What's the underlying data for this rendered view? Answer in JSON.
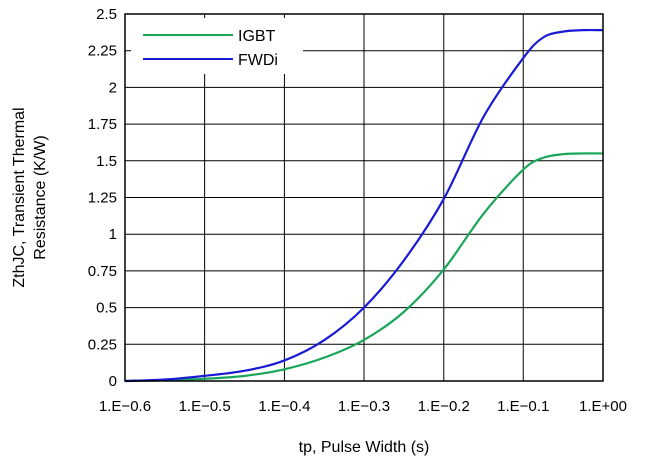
{
  "chart_data": {
    "type": "line",
    "xlabel": "tp, Pulse Width (s)",
    "ylabel_lines": [
      "ZthJC, Transient Thermal",
      "Resistance (K/W)"
    ],
    "x_scale": "log",
    "xlim": [
      0.251,
      1.0
    ],
    "ylim": [
      0,
      2.5
    ],
    "x_ticks": [
      0.251,
      0.316,
      0.398,
      0.501,
      0.631,
      0.794,
      1.0
    ],
    "x_tick_labels": [
      "1.E−0.6",
      "1.E−0.5",
      "1.E−0.4",
      "1.E−0.3",
      "1.E−0.2",
      "1.E−0.1",
      "1.E+00"
    ],
    "y_ticks": [
      0,
      0.25,
      0.5,
      0.75,
      1,
      1.25,
      1.5,
      1.75,
      2,
      2.25,
      2.5
    ],
    "y_tick_labels": [
      "0",
      "0.25",
      "0.5",
      "0.75",
      "1",
      "1.25",
      "1.5",
      "1.75",
      "2",
      "2.25",
      "2.5"
    ],
    "grid": true,
    "legend_position": "top-left",
    "series": [
      {
        "name": "IGBT",
        "color": "#1aa65a",
        "x": [
          0.251,
          0.282,
          0.316,
          0.355,
          0.398,
          0.447,
          0.501,
          0.562,
          0.631,
          0.708,
          0.794,
          0.841,
          0.891,
          0.944,
          1.0
        ],
        "y": [
          0.0,
          0.005,
          0.015,
          0.035,
          0.08,
          0.16,
          0.28,
          0.47,
          0.76,
          1.14,
          1.44,
          1.52,
          1.545,
          1.55,
          1.55
        ]
      },
      {
        "name": "FWDi",
        "color": "#1a1ad6",
        "x": [
          0.251,
          0.282,
          0.316,
          0.355,
          0.398,
          0.447,
          0.501,
          0.562,
          0.631,
          0.708,
          0.794,
          0.841,
          0.891,
          0.944,
          1.0
        ],
        "y": [
          0.0,
          0.01,
          0.035,
          0.07,
          0.14,
          0.28,
          0.5,
          0.82,
          1.24,
          1.8,
          2.2,
          2.34,
          2.38,
          2.39,
          2.39
        ]
      }
    ]
  }
}
